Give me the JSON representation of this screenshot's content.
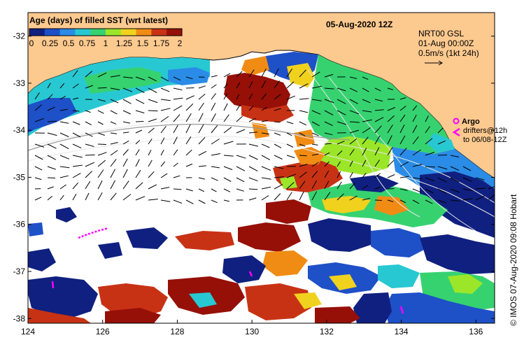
{
  "map": {
    "title": "05-Aug-2020 12Z",
    "colorbar": {
      "title": "Age (days) of filled SST (wrt latest)",
      "ticks": [
        "0",
        "0.25",
        "0.5",
        "0.75",
        "1",
        "1.25",
        "1.5",
        "1.75",
        "2"
      ],
      "colors": [
        "#102080",
        "#1e50c8",
        "#2a8ce6",
        "#28c8d2",
        "#36d270",
        "#9ce62a",
        "#f0d21e",
        "#f08c14",
        "#c83214",
        "#961008"
      ]
    },
    "wind": {
      "model": "NRT00 GSL",
      "date": "01-Aug 00:00Z",
      "scale": "0.5m/s (1kt 24h)"
    },
    "legend": {
      "argo": "Argo",
      "drifters": "drifters@12h",
      "drifters_to": "to 06/08-12Z"
    },
    "credit": "© IMOS 07-Aug-2020 09:08 Hobart",
    "lon_range": [
      124,
      136.5
    ],
    "lat_range": [
      -38.1,
      -31.5
    ],
    "lon_ticks": [
      "124",
      "126",
      "128",
      "130",
      "132",
      "134",
      "136"
    ],
    "lat_ticks": [
      "-32",
      "-33",
      "-34",
      "-35",
      "-36",
      "-37",
      "-38"
    ],
    "colors": {
      "land": "#fcc98f",
      "ocean_nodata": "#ffffff",
      "coast": "#000000",
      "argo": "#ff00ff"
    }
  }
}
